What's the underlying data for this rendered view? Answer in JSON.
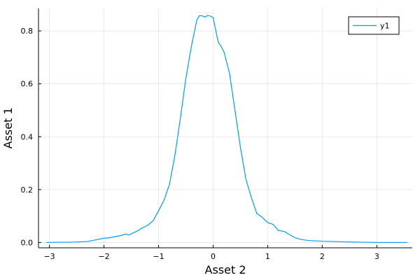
{
  "chart_data": {
    "type": "line",
    "title": "",
    "xlabel": "Asset 2",
    "ylabel": "Asset 1",
    "xlim": [
      -3.2,
      3.65
    ],
    "ylim": [
      -0.02,
      0.885
    ],
    "x_ticks": [
      -3,
      -2,
      -1,
      0,
      1,
      2,
      3
    ],
    "x_tick_labels": [
      "−3",
      "−2",
      "−1",
      "0",
      "1",
      "2",
      "3"
    ],
    "y_ticks": [
      0.0,
      0.2,
      0.4,
      0.6,
      0.8
    ],
    "y_tick_labels": [
      "0.0",
      "0.2",
      "0.4",
      "0.6",
      "0.8"
    ],
    "grid": true,
    "legend_position": "top-right",
    "series": [
      {
        "name": "y1",
        "color": "#009af9",
        "x": [
          -3.05,
          -2.9,
          -2.7,
          -2.5,
          -2.3,
          -2.15,
          -2.05,
          -2.0,
          -1.9,
          -1.8,
          -1.7,
          -1.6,
          -1.55,
          -1.5,
          -1.45,
          -1.4,
          -1.3,
          -1.2,
          -1.1,
          -1.0,
          -0.9,
          -0.8,
          -0.7,
          -0.6,
          -0.5,
          -0.4,
          -0.3,
          -0.25,
          -0.2,
          -0.15,
          -0.1,
          -0.05,
          0.0,
          0.03,
          0.07,
          0.1,
          0.15,
          0.2,
          0.3,
          0.4,
          0.5,
          0.6,
          0.7,
          0.8,
          0.9,
          1.0,
          1.05,
          1.1,
          1.2,
          1.3,
          1.4,
          1.5,
          1.6,
          1.7,
          1.8,
          2.0,
          2.2,
          2.5,
          2.8,
          3.0,
          3.3,
          3.55
        ],
        "y": [
          0.0,
          0.001,
          0.001,
          0.002,
          0.004,
          0.01,
          0.014,
          0.016,
          0.018,
          0.022,
          0.026,
          0.032,
          0.028,
          0.032,
          0.038,
          0.042,
          0.055,
          0.065,
          0.082,
          0.12,
          0.16,
          0.22,
          0.33,
          0.47,
          0.62,
          0.74,
          0.84,
          0.858,
          0.857,
          0.852,
          0.858,
          0.856,
          0.85,
          0.82,
          0.78,
          0.755,
          0.74,
          0.72,
          0.64,
          0.5,
          0.36,
          0.24,
          0.17,
          0.11,
          0.095,
          0.075,
          0.072,
          0.068,
          0.045,
          0.042,
          0.03,
          0.018,
          0.012,
          0.009,
          0.007,
          0.005,
          0.004,
          0.002,
          0.001,
          0.0,
          0.0,
          0.0
        ]
      }
    ]
  }
}
